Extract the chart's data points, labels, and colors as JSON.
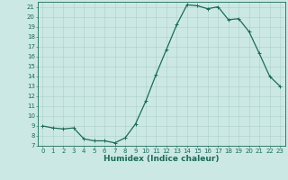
{
  "x": [
    0,
    1,
    2,
    3,
    4,
    5,
    6,
    7,
    8,
    9,
    10,
    11,
    12,
    13,
    14,
    15,
    16,
    17,
    18,
    19,
    20,
    21,
    22,
    23
  ],
  "y": [
    9.0,
    8.8,
    8.7,
    8.8,
    7.7,
    7.5,
    7.5,
    7.3,
    7.8,
    9.2,
    11.5,
    14.2,
    16.7,
    19.2,
    21.2,
    21.1,
    20.8,
    21.0,
    19.7,
    19.8,
    18.5,
    16.3,
    14.0,
    13.0
  ],
  "xlabel": "Humidex (Indice chaleur)",
  "ylim": [
    7,
    21.5
  ],
  "xlim": [
    -0.5,
    23.5
  ],
  "yticks": [
    7,
    8,
    9,
    10,
    11,
    12,
    13,
    14,
    15,
    16,
    17,
    18,
    19,
    20,
    21
  ],
  "xticks": [
    0,
    1,
    2,
    3,
    4,
    5,
    6,
    7,
    8,
    9,
    10,
    11,
    12,
    13,
    14,
    15,
    16,
    17,
    18,
    19,
    20,
    21,
    22,
    23
  ],
  "line_color": "#1a6b5a",
  "marker_color": "#1a6b5a",
  "bg_color": "#cce8e4",
  "grid_color": "#aacfcb",
  "axis_label_color": "#1a6b5a",
  "tick_label_color": "#1a6b5a",
  "tick_fontsize": 5.0,
  "xlabel_fontsize": 6.5,
  "linewidth": 0.9,
  "markersize": 2.2
}
